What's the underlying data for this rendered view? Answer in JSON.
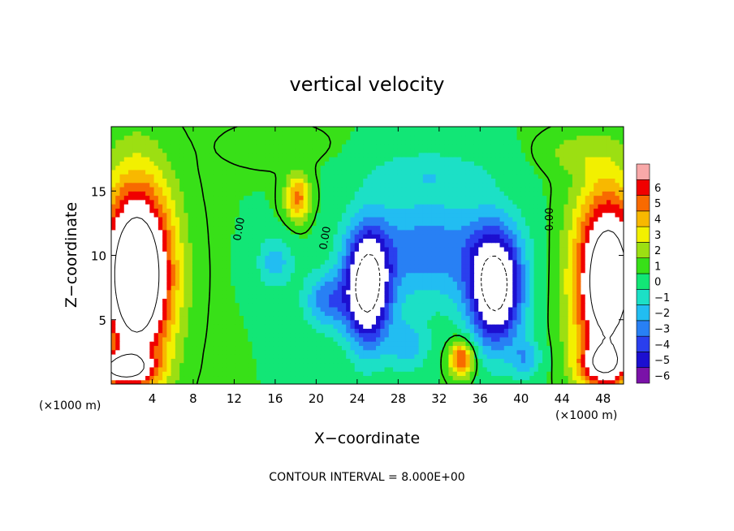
{
  "chart_data": {
    "type": "heatmap",
    "title": "vertical velocity",
    "xlabel": "X−coordinate",
    "ylabel": "Z−coordinate",
    "x_unit_label": "(×1000 m)",
    "x_unit_label_right": "(×1000 m)",
    "xlim": [
      0,
      50
    ],
    "ylim": [
      0,
      20
    ],
    "x_ticks": [
      4,
      8,
      12,
      16,
      20,
      24,
      28,
      32,
      36,
      40,
      44,
      48
    ],
    "y_ticks": [
      5,
      10,
      15
    ],
    "colorbar": {
      "levels": [
        -6,
        -5,
        -4,
        -3,
        -2,
        -1,
        0,
        1,
        2,
        3,
        4,
        5,
        6
      ],
      "labels": [
        "−6",
        "−5",
        "−4",
        "−3",
        "−2",
        "−1",
        "0",
        "1",
        "2",
        "3",
        "4",
        "5",
        "6"
      ],
      "colors": [
        "#7a12a8",
        "#1c0fd0",
        "#2a3fee",
        "#2880f4",
        "#22bdf2",
        "#1ce0c6",
        "#12e676",
        "#38e018",
        "#9cdf12",
        "#f2f000",
        "#f8b800",
        "#f86a00",
        "#f00000",
        "#f8a8a8"
      ]
    },
    "contour_labels": [
      {
        "text": "0.00",
        "x": 12.8,
        "y": 12.0,
        "rotate": -80
      },
      {
        "text": "0.00",
        "x": 21.2,
        "y": 11.3,
        "rotate": -80
      },
      {
        "text": "0.00",
        "x": 43.1,
        "y": 12.8,
        "rotate": -90
      }
    ],
    "footer": "CONTOUR INTERVAL = 8.000E+00",
    "features": [
      {
        "kind": "updraft",
        "x": 2.5,
        "y": 8.5,
        "sx": 3.4,
        "sy": 7.0,
        "v": 12
      },
      {
        "kind": "updraft",
        "x": 1.0,
        "y": 1.2,
        "sx": 3.0,
        "sy": 1.2,
        "v": 7
      },
      {
        "kind": "updraft",
        "x": 48.5,
        "y": 8.0,
        "sx": 3.2,
        "sy": 7.0,
        "v": 11
      },
      {
        "kind": "updraft",
        "x": 48.0,
        "y": 1.5,
        "sx": 2.4,
        "sy": 1.5,
        "v": 5
      },
      {
        "kind": "updraft",
        "x": 18.2,
        "y": 14.5,
        "sx": 1.2,
        "sy": 1.8,
        "v": 4.5
      },
      {
        "kind": "updraft",
        "x": 34.2,
        "y": 2.0,
        "sx": 1.2,
        "sy": 1.4,
        "v": 5.5
      },
      {
        "kind": "updraft",
        "x": 16.0,
        "y": 18.5,
        "sx": 4.5,
        "sy": 1.5,
        "v": 0.8
      },
      {
        "kind": "updraft",
        "x": 45.0,
        "y": 18.0,
        "sx": 3.0,
        "sy": 1.5,
        "v": 1.2
      },
      {
        "kind": "downdraft",
        "x": 25.0,
        "y": 7.5,
        "sx": 2.2,
        "sy": 4.5,
        "v": -9
      },
      {
        "kind": "downdraft",
        "x": 37.5,
        "y": 7.5,
        "sx": 2.6,
        "sy": 4.5,
        "v": -9
      },
      {
        "kind": "downdraft",
        "x": 31.0,
        "y": 10.5,
        "sx": 6.5,
        "sy": 4.2,
        "v": -3.6
      },
      {
        "kind": "downdraft",
        "x": 31.0,
        "y": 16.5,
        "sx": 6.0,
        "sy": 1.8,
        "v": -1.5
      },
      {
        "kind": "downdraft",
        "x": 21.0,
        "y": 6.5,
        "sx": 2.2,
        "sy": 2.2,
        "v": -3.5
      },
      {
        "kind": "downdraft",
        "x": 16.0,
        "y": 9.5,
        "sx": 1.8,
        "sy": 2.0,
        "v": -2.5
      },
      {
        "kind": "downdraft",
        "x": 29.0,
        "y": 3.0,
        "sx": 2.0,
        "sy": 2.0,
        "v": -2.5
      },
      {
        "kind": "downdraft",
        "x": 40.5,
        "y": 2.0,
        "sx": 1.5,
        "sy": 1.5,
        "v": -2.5
      }
    ]
  }
}
